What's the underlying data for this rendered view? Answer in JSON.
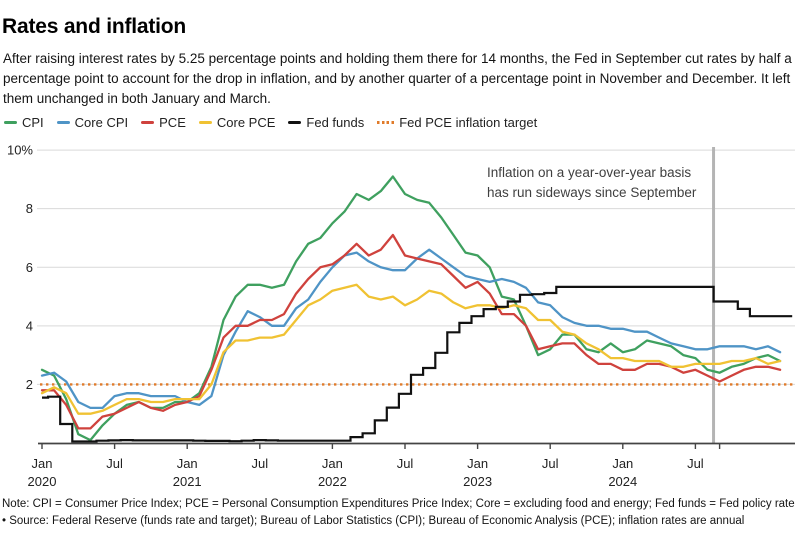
{
  "header": {
    "title": "Rates and inflation",
    "subtitle": "After raising interest rates by 5.25 percentage points and holding them there for 14 months, the Fed in September cut rates by half a percentage point to account for the drop in inflation, and by another quarter of a percentage point in November and December. It left them unchanged in both January and March."
  },
  "legend": {
    "items": [
      {
        "label": "CPI",
        "color": "#3fa05f",
        "marker": "dash"
      },
      {
        "label": "Core CPI",
        "color": "#4f94c6",
        "marker": "dash"
      },
      {
        "label": "PCE",
        "color": "#cf423d",
        "marker": "dash"
      },
      {
        "label": "Core PCE",
        "color": "#f0c233",
        "marker": "dash"
      },
      {
        "label": "Fed funds",
        "color": "#111111",
        "marker": "dash"
      },
      {
        "label": "Fed PCE inflation target",
        "color": "#e07b2a",
        "marker": "dots"
      }
    ]
  },
  "annotation": {
    "line1": "Inflation on a year-over-year basis",
    "line2": "has run sideways since September"
  },
  "notes": {
    "note": "Note: CPI = Consumer Price Index; PCE = Personal Consumption Expenditures Price Index; Core = excluding food and energy; Fed funds = Fed policy rate",
    "source": "• Source: Federal Reserve (funds rate and target); Bureau of Labor Statistics (CPI); Bureau of Economic Analysis (PCE); inflation rates are annual"
  },
  "chart_data": {
    "type": "line",
    "x_unit": "month",
    "x_range": [
      "Jan 2020",
      "Mar 2025"
    ],
    "ylim": [
      0,
      10
    ],
    "grid": true,
    "legend_position": "top",
    "y_ticks": [
      {
        "value": 2,
        "label": "2"
      },
      {
        "value": 4,
        "label": "4"
      },
      {
        "value": 6,
        "label": "6"
      },
      {
        "value": 8,
        "label": "8"
      },
      {
        "value": 10,
        "label": "10%"
      }
    ],
    "x_ticks": [
      {
        "month_index": 0,
        "label": "Jan",
        "year": "2020"
      },
      {
        "month_index": 6,
        "label": "Jul",
        "year": ""
      },
      {
        "month_index": 12,
        "label": "Jan",
        "year": "2021"
      },
      {
        "month_index": 18,
        "label": "Jul",
        "year": ""
      },
      {
        "month_index": 24,
        "label": "Jan",
        "year": "2022"
      },
      {
        "month_index": 30,
        "label": "Jul",
        "year": ""
      },
      {
        "month_index": 36,
        "label": "Jan",
        "year": "2023"
      },
      {
        "month_index": 42,
        "label": "Jul",
        "year": ""
      },
      {
        "month_index": 48,
        "label": "Jan",
        "year": "2024"
      },
      {
        "month_index": 54,
        "label": "Jul",
        "year": ""
      }
    ],
    "extra_tick_month_indices": [
      56
    ],
    "target_line": {
      "value": 2,
      "color": "#e07b2a",
      "style": "dotted",
      "label": "Fed PCE inflation target"
    },
    "vertical_marker": {
      "month_index": 56,
      "color": "#b4b4b4"
    },
    "series": [
      {
        "name": "CPI",
        "color": "#3fa05f",
        "style": "line",
        "start_month_index": 0,
        "values": [
          2.5,
          2.3,
          1.5,
          0.3,
          0.1,
          0.6,
          1.0,
          1.3,
          1.4,
          1.2,
          1.2,
          1.4,
          1.4,
          1.7,
          2.6,
          4.2,
          5.0,
          5.4,
          5.4,
          5.3,
          5.4,
          6.2,
          6.8,
          7.0,
          7.5,
          7.9,
          8.5,
          8.3,
          8.6,
          9.1,
          8.5,
          8.3,
          8.2,
          7.7,
          7.1,
          6.5,
          6.4,
          6.0,
          5.0,
          4.9,
          4.0,
          3.0,
          3.2,
          3.7,
          3.7,
          3.2,
          3.1,
          3.4,
          3.1,
          3.2,
          3.5,
          3.4,
          3.3,
          3.0,
          2.9,
          2.5,
          2.4,
          2.6,
          2.7,
          2.9,
          3.0,
          2.8
        ]
      },
      {
        "name": "Core CPI",
        "color": "#4f94c6",
        "style": "line",
        "start_month_index": 0,
        "values": [
          2.3,
          2.4,
          2.1,
          1.4,
          1.2,
          1.2,
          1.6,
          1.7,
          1.7,
          1.6,
          1.6,
          1.6,
          1.4,
          1.3,
          1.6,
          3.0,
          3.8,
          4.5,
          4.3,
          4.0,
          4.0,
          4.6,
          4.9,
          5.5,
          6.0,
          6.4,
          6.5,
          6.2,
          6.0,
          5.9,
          5.9,
          6.3,
          6.6,
          6.3,
          6.0,
          5.7,
          5.6,
          5.5,
          5.6,
          5.5,
          5.3,
          4.8,
          4.7,
          4.3,
          4.1,
          4.0,
          4.0,
          3.9,
          3.9,
          3.8,
          3.8,
          3.6,
          3.4,
          3.3,
          3.2,
          3.2,
          3.3,
          3.3,
          3.3,
          3.2,
          3.3,
          3.1
        ]
      },
      {
        "name": "PCE",
        "color": "#cf423d",
        "style": "line",
        "start_month_index": 0,
        "values": [
          1.8,
          1.8,
          1.3,
          0.5,
          0.5,
          0.9,
          1.0,
          1.2,
          1.4,
          1.2,
          1.1,
          1.3,
          1.4,
          1.6,
          2.5,
          3.6,
          4.0,
          4.0,
          4.2,
          4.2,
          4.4,
          5.1,
          5.6,
          6.0,
          6.1,
          6.4,
          6.8,
          6.4,
          6.6,
          7.1,
          6.4,
          6.3,
          6.2,
          6.1,
          5.7,
          5.3,
          5.5,
          5.1,
          4.4,
          4.4,
          4.0,
          3.2,
          3.3,
          3.4,
          3.4,
          3.0,
          2.7,
          2.7,
          2.5,
          2.5,
          2.7,
          2.7,
          2.6,
          2.4,
          2.5,
          2.3,
          2.1,
          2.3,
          2.5,
          2.6,
          2.6,
          2.5
        ]
      },
      {
        "name": "Core PCE",
        "color": "#f0c233",
        "style": "line",
        "start_month_index": 0,
        "values": [
          1.7,
          1.9,
          1.7,
          1.0,
          1.0,
          1.1,
          1.3,
          1.5,
          1.5,
          1.4,
          1.4,
          1.5,
          1.5,
          1.5,
          2.0,
          3.1,
          3.5,
          3.5,
          3.6,
          3.6,
          3.7,
          4.2,
          4.7,
          4.9,
          5.2,
          5.3,
          5.4,
          5.0,
          4.9,
          5.0,
          4.7,
          4.9,
          5.2,
          5.1,
          4.8,
          4.6,
          4.7,
          4.7,
          4.6,
          4.7,
          4.6,
          4.2,
          4.2,
          3.8,
          3.7,
          3.4,
          3.2,
          2.9,
          2.9,
          2.8,
          2.8,
          2.8,
          2.6,
          2.6,
          2.7,
          2.7,
          2.7,
          2.8,
          2.8,
          2.9,
          2.7,
          2.8
        ]
      },
      {
        "name": "Fed funds",
        "color": "#111111",
        "style": "step",
        "start_month_index": 0,
        "values": [
          1.55,
          1.58,
          0.65,
          0.05,
          0.05,
          0.08,
          0.09,
          0.1,
          0.09,
          0.09,
          0.09,
          0.09,
          0.09,
          0.08,
          0.07,
          0.07,
          0.06,
          0.08,
          0.1,
          0.09,
          0.08,
          0.08,
          0.08,
          0.08,
          0.08,
          0.08,
          0.2,
          0.33,
          0.77,
          1.21,
          1.68,
          2.33,
          2.56,
          3.08,
          3.78,
          4.1,
          4.33,
          4.57,
          4.65,
          4.83,
          5.06,
          5.08,
          5.12,
          5.33,
          5.33,
          5.33,
          5.33,
          5.33,
          5.33,
          5.33,
          5.33,
          5.33,
          5.33,
          5.33,
          5.33,
          5.33,
          4.83,
          4.83,
          4.58,
          4.33,
          4.33,
          4.33,
          4.33
        ]
      }
    ]
  }
}
